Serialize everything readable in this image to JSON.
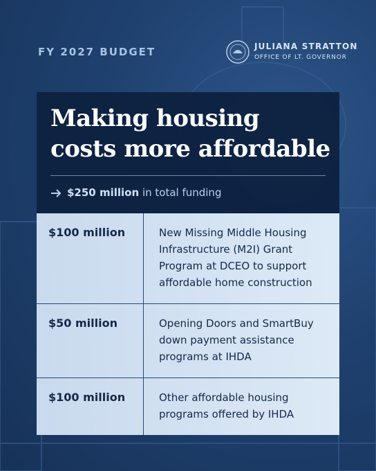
{
  "header": {
    "title": "FY 2027 BUDGET",
    "org_name": "JULIANA STRATTON",
    "org_subtitle": "OFFICE OF LT. GOVERNOR"
  },
  "panel": {
    "title_lines": [
      "Making housing",
      "costs more affordable"
    ],
    "funding_amount": "$250 million",
    "funding_text": "in total funding"
  },
  "table": {
    "rows": [
      [
        "$100 million",
        "New Missing Middle Housing Infrastructure (M2I) Grant Program at DCEO to support affordable home construction"
      ],
      [
        "$50 million",
        "Opening Doors and SmartBuy down payment assistance programs at IHDA"
      ],
      [
        "$100 million",
        "Other affordable housing programs offered by IHDA"
      ]
    ]
  }
}
